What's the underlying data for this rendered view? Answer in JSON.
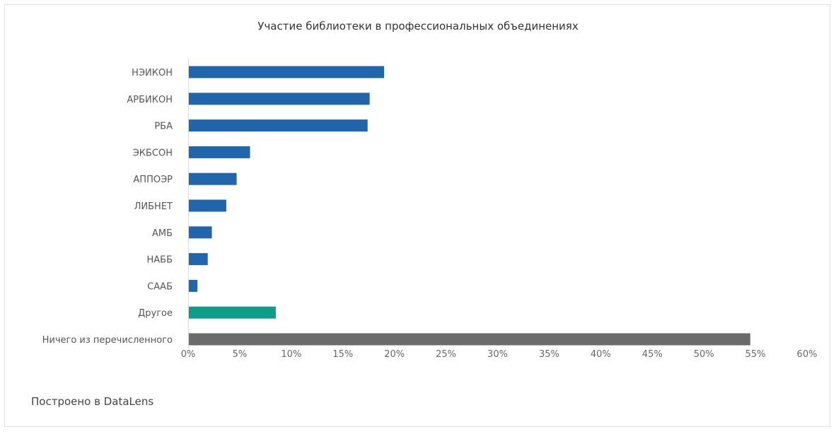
{
  "chart_data": {
    "type": "bar",
    "orientation": "horizontal",
    "title": "Участие библиотеки в профессиональных объединениях",
    "categories": [
      "НЭИКОН",
      "АРБИКОН",
      "РБА",
      "ЭКБСОН",
      "АППОЭР",
      "ЛИБНЕТ",
      "АМБ",
      "НАББ",
      "СААБ",
      "Другое",
      "Ничего из перечисленного"
    ],
    "values": [
      19.0,
      17.6,
      17.4,
      6.0,
      4.7,
      3.7,
      2.3,
      1.9,
      0.9,
      8.5,
      54.5
    ],
    "colors": [
      "#2166ac",
      "#2166ac",
      "#2166ac",
      "#2166ac",
      "#2166ac",
      "#2166ac",
      "#2166ac",
      "#2166ac",
      "#2166ac",
      "#0e9e88",
      "#6b6b6b"
    ],
    "xlim": [
      0,
      60
    ],
    "xticks": [
      "0%",
      "5%",
      "10%",
      "15%",
      "20%",
      "25%",
      "30%",
      "35%",
      "40%",
      "45%",
      "50%",
      "55%",
      "60%"
    ],
    "xlabel": "",
    "ylabel": "",
    "grid": false,
    "legend": false
  },
  "footer": "Построено в DataLens"
}
